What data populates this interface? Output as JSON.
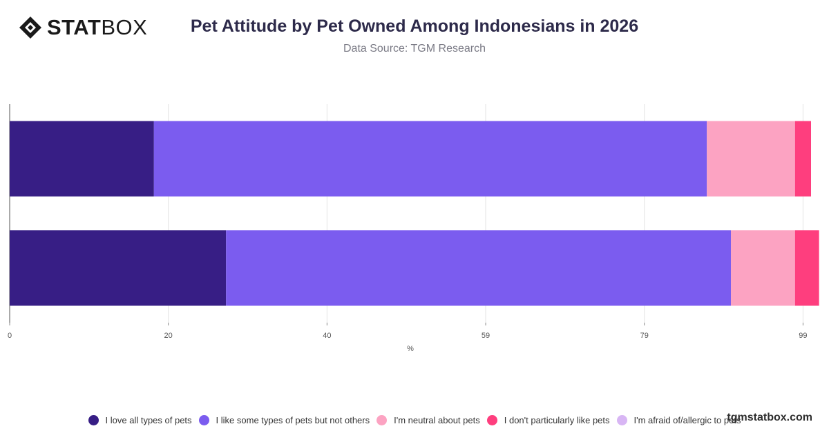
{
  "brand": {
    "logo_bold": "STAT",
    "logo_light": "BOX"
  },
  "header": {
    "title": "Pet Attitude by Pet Owned Among Indonesians in 2026",
    "subtitle": "Data Source: TGM Research"
  },
  "watermark": "tgmstatbox.com",
  "chart_data": {
    "type": "bar",
    "orientation": "horizontal",
    "stacked": true,
    "title": "Pet Attitude by Pet Owned Among Indonesians in 2026",
    "xlabel": "%",
    "ylabel": "",
    "xlim": [
      0,
      100
    ],
    "x_ticks": [
      "0",
      "20",
      "40",
      "59",
      "79",
      "99"
    ],
    "x_tick_values": [
      0,
      19.8,
      39.6,
      59.4,
      79.2,
      99
    ],
    "grid": true,
    "legend_position": "bottom",
    "categories": [
      "",
      ""
    ],
    "series": [
      {
        "name": "I love all types of pets",
        "color": "#371e85",
        "values": [
          18,
          27
        ]
      },
      {
        "name": "I like some types of pets but not others",
        "color": "#7b5cef",
        "values": [
          69,
          63
        ]
      },
      {
        "name": "I'm neutral about pets",
        "color": "#fca3c2",
        "values": [
          11,
          8
        ]
      },
      {
        "name": "I don't particularly like pets",
        "color": "#fe3e7e",
        "values": [
          2,
          3
        ]
      },
      {
        "name": "I'm afraid of/allergic to pets",
        "color": "#d8b6f4",
        "values": [
          0,
          0
        ]
      }
    ]
  }
}
